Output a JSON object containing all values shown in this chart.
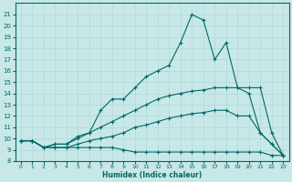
{
  "xlabel": "Humidex (Indice chaleur)",
  "background_color": "#c8e8e8",
  "grid_color": "#b0d8d8",
  "line_color": "#006868",
  "xlim": [
    -0.5,
    23.5
  ],
  "ylim": [
    8,
    22
  ],
  "xticks": [
    0,
    1,
    2,
    3,
    4,
    5,
    6,
    7,
    8,
    9,
    10,
    11,
    12,
    13,
    14,
    15,
    16,
    17,
    18,
    19,
    20,
    21,
    22,
    23
  ],
  "yticks": [
    8,
    9,
    10,
    11,
    12,
    13,
    14,
    15,
    16,
    17,
    18,
    19,
    20,
    21
  ],
  "lines": [
    {
      "x": [
        0,
        1,
        2,
        3,
        4,
        5,
        6,
        7,
        8,
        9,
        10,
        11,
        12,
        13,
        14,
        15,
        16,
        17,
        18,
        19,
        20,
        21,
        22,
        23
      ],
      "y": [
        9.8,
        9.8,
        9.2,
        9.2,
        9.2,
        9.2,
        9.2,
        9.2,
        9.2,
        9.0,
        8.8,
        8.8,
        8.8,
        8.8,
        8.8,
        8.8,
        8.8,
        8.8,
        8.8,
        8.8,
        8.8,
        8.8,
        8.5,
        8.5
      ]
    },
    {
      "x": [
        0,
        1,
        2,
        3,
        4,
        5,
        6,
        7,
        8,
        9,
        10,
        11,
        12,
        13,
        14,
        15,
        16,
        17,
        18,
        19,
        20,
        21,
        22,
        23
      ],
      "y": [
        9.8,
        9.8,
        9.2,
        9.2,
        9.2,
        9.5,
        9.8,
        10.0,
        10.2,
        10.5,
        11.0,
        11.2,
        11.5,
        11.8,
        12.0,
        12.2,
        12.3,
        12.5,
        12.5,
        12.0,
        12.0,
        10.5,
        9.5,
        8.5
      ]
    },
    {
      "x": [
        0,
        1,
        2,
        3,
        4,
        5,
        6,
        7,
        8,
        9,
        10,
        11,
        12,
        13,
        14,
        15,
        16,
        17,
        18,
        19,
        20,
        21,
        22,
        23
      ],
      "y": [
        9.8,
        9.8,
        9.2,
        9.5,
        9.5,
        10.0,
        10.5,
        11.0,
        11.5,
        12.0,
        12.5,
        13.0,
        13.5,
        13.8,
        14.0,
        14.2,
        14.3,
        14.5,
        14.5,
        14.5,
        14.0,
        10.5,
        9.5,
        8.5
      ]
    },
    {
      "x": [
        0,
        1,
        2,
        3,
        4,
        5,
        6,
        7,
        8,
        9,
        10,
        11,
        12,
        13,
        14,
        15,
        16,
        17,
        18,
        19,
        20,
        21,
        22,
        23
      ],
      "y": [
        9.8,
        9.8,
        9.2,
        9.5,
        9.5,
        10.2,
        10.5,
        12.5,
        13.5,
        13.5,
        14.5,
        15.5,
        16.0,
        16.5,
        18.5,
        21.0,
        20.5,
        17.0,
        18.5,
        14.5,
        14.5,
        14.5,
        10.5,
        8.5
      ]
    }
  ]
}
